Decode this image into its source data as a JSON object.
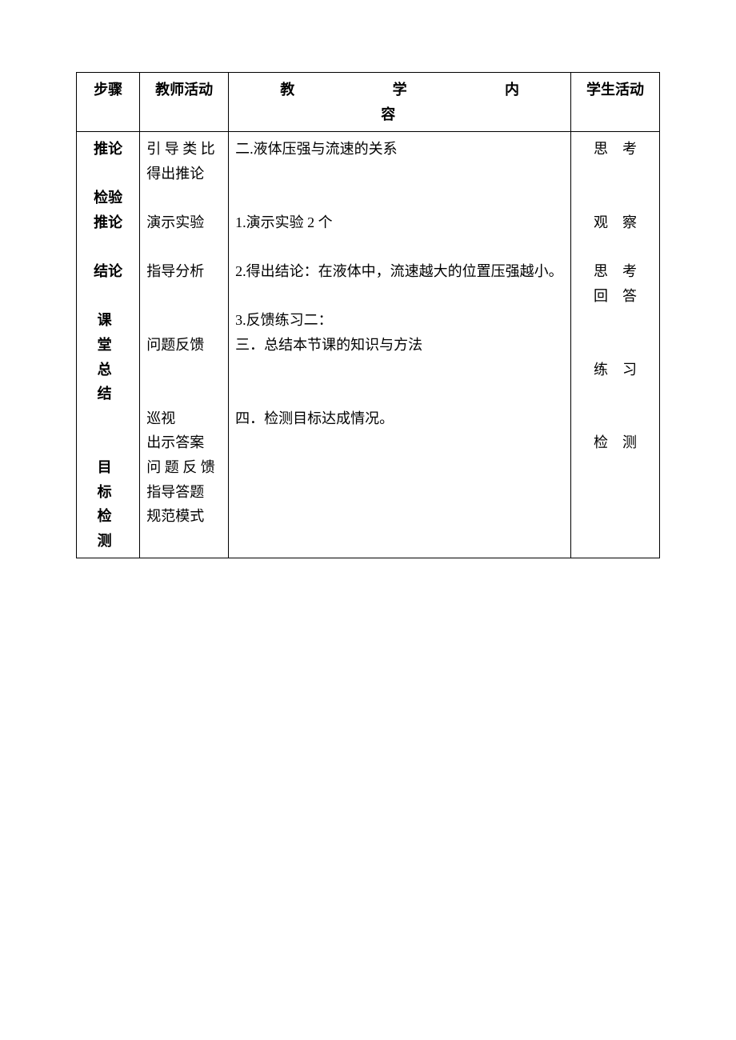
{
  "table": {
    "headers": {
      "step": "步骤",
      "teacher": "教师活动",
      "content": "教　　学　　内　　容",
      "student": "学生活动"
    },
    "body": {
      "steps": {
        "tuilun": "推论",
        "jianyan": "检验",
        "tuilun2": "推论",
        "jielun": "结论",
        "ketang": "课 堂",
        "zongjie": "总 结",
        "mubiao": "目 标",
        "jiance": "检 测"
      },
      "teacher": {
        "yindao": "引 导 类 比",
        "dechu": "得出推论",
        "yanshi": "演示实验",
        "zhidao_fenxi": "指导分析",
        "wenti_fankui": "问题反馈",
        "xunshi": "巡视",
        "chushi": "出示答案",
        "wenti_fankui2": "问 题 反 馈",
        "zhidao_dati": "指导答题",
        "guifan": "规范模式"
      },
      "content": {
        "er": "二.液体压强与流速的关系",
        "yi1": "1.演示实验 2 个",
        "er2": "2.得出结论：在液体中，流速越大的位置压强越小。",
        "san3": "3.反馈练习二：",
        "san": "三．总结本节课的知识与方法",
        "si": "四．检测目标达成情况。"
      },
      "student": {
        "sikao": "思　考",
        "guancha": "观　察",
        "sikao2": "思　考",
        "huida": "回　答",
        "lianxi": "练　习",
        "jiance": "检　测"
      }
    },
    "styling": {
      "border_color": "#000000",
      "border_width": 1.5,
      "background_color": "#ffffff",
      "font_size": 18,
      "line_height": 1.7,
      "text_color": "#000000",
      "col_widths_pct": [
        10,
        14,
        54,
        14
      ]
    }
  }
}
